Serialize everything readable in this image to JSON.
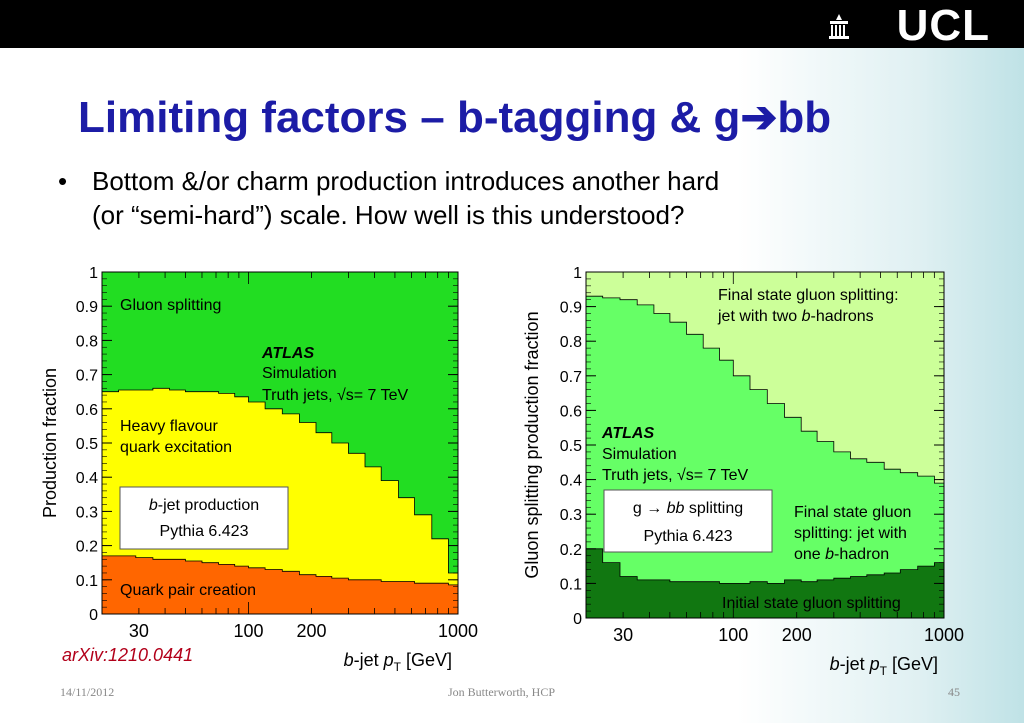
{
  "header": {
    "logo_text": "UCL"
  },
  "slide": {
    "title_prefix": "Limiting factors – b-tagging & g",
    "title_arrow": "➔",
    "title_suffix": "bb",
    "bullet_symbol": "•",
    "bullet_line1": "Bottom &/or charm production introduces another hard",
    "bullet_line2": "(or “semi-hard”) scale. How well is this understood?"
  },
  "reference": "arXiv:1210.0441",
  "footer": {
    "date": "14/11/2012",
    "author": "Jon Butterworth, HCP",
    "page": "45"
  },
  "colors": {
    "green": "#22dd22",
    "yellow": "#ffff00",
    "orange": "#ff6600",
    "light_green": "#ccff99",
    "mid_green": "#66ff66",
    "dark_green": "#117711",
    "title_blue": "#1c1ca6",
    "ref_red": "#b2001a"
  },
  "chart_data": [
    {
      "type": "area",
      "ylabel": "Production fraction",
      "xlabel_parts": [
        "b",
        "-jet ",
        "p",
        "T",
        " [GeV]"
      ],
      "x_log": true,
      "xlim": [
        20,
        1000
      ],
      "ylim": [
        0,
        1
      ],
      "x_ticks": [
        "30",
        "100",
        "200",
        "1000"
      ],
      "x_tick_values": [
        30,
        100,
        200,
        1000
      ],
      "y_ticks": [
        "0",
        "0.1",
        "0.2",
        "0.3",
        "0.4",
        "0.5",
        "0.6",
        "0.7",
        "0.8",
        "0.9",
        "1"
      ],
      "experiment_label": "ATLAS",
      "sim_label": "Simulation",
      "truth_label": "Truth jets, √s= 7 TeV",
      "box_line1_parts": [
        "b",
        "-jet production"
      ],
      "box_line2": "Pythia 6.423",
      "series": [
        {
          "name": "Quark pair creation",
          "color": "#ff6600",
          "x": [
            20,
            24,
            29,
            35,
            42,
            50,
            60,
            72,
            86,
            100,
            120,
            145,
            175,
            210,
            250,
            300,
            360,
            430,
            520,
            620,
            750,
            900,
            1000
          ],
          "top": [
            0.17,
            0.17,
            0.165,
            0.16,
            0.16,
            0.155,
            0.15,
            0.145,
            0.14,
            0.135,
            0.13,
            0.125,
            0.115,
            0.11,
            0.105,
            0.1,
            0.1,
            0.095,
            0.095,
            0.09,
            0.09,
            0.085,
            0.085
          ]
        },
        {
          "name_lines": [
            "Heavy flavour",
            "quark excitation"
          ],
          "color": "#ffff00",
          "x": [
            20,
            24,
            29,
            35,
            42,
            50,
            60,
            72,
            86,
            100,
            120,
            145,
            175,
            210,
            250,
            300,
            360,
            430,
            520,
            620,
            750,
            900,
            1000
          ],
          "top": [
            0.65,
            0.655,
            0.655,
            0.66,
            0.655,
            0.65,
            0.65,
            0.645,
            0.635,
            0.62,
            0.6,
            0.585,
            0.56,
            0.53,
            0.5,
            0.47,
            0.43,
            0.39,
            0.34,
            0.29,
            0.22,
            0.12,
            0.09
          ]
        },
        {
          "name": "Gluon splitting",
          "color": "#22dd22",
          "top_value": 1.0
        }
      ]
    },
    {
      "type": "area",
      "ylabel": "Gluon splitting production fraction",
      "xlabel_parts": [
        "b",
        "-jet ",
        "p",
        "T",
        " [GeV]"
      ],
      "x_log": true,
      "xlim": [
        20,
        1000
      ],
      "ylim": [
        0,
        1
      ],
      "x_ticks": [
        "30",
        "100",
        "200",
        "1000"
      ],
      "x_tick_values": [
        30,
        100,
        200,
        1000
      ],
      "y_ticks": [
        "0",
        "0.1",
        "0.2",
        "0.3",
        "0.4",
        "0.5",
        "0.6",
        "0.7",
        "0.8",
        "0.9",
        "1"
      ],
      "experiment_label": "ATLAS",
      "sim_label": "Simulation",
      "truth_label": "Truth jets, √s= 7 TeV",
      "box_line1_parts": [
        "g → ",
        "bb",
        " splitting"
      ],
      "box_line2": "Pythia 6.423",
      "series": [
        {
          "name": "Initial state gluon splitting",
          "color": "#117711",
          "x": [
            20,
            24,
            29,
            35,
            42,
            50,
            60,
            72,
            86,
            100,
            120,
            145,
            175,
            210,
            250,
            300,
            360,
            430,
            520,
            620,
            750,
            900,
            1000
          ],
          "top": [
            0.2,
            0.16,
            0.12,
            0.11,
            0.11,
            0.105,
            0.105,
            0.105,
            0.1,
            0.1,
            0.105,
            0.1,
            0.11,
            0.105,
            0.11,
            0.115,
            0.12,
            0.125,
            0.13,
            0.14,
            0.15,
            0.16,
            0.17
          ]
        },
        {
          "name_lines": [
            "Final state gluon",
            "splitting: jet with",
            "one b-hadron"
          ],
          "color": "#66ff66",
          "x": [
            20,
            24,
            29,
            35,
            42,
            50,
            60,
            72,
            86,
            100,
            120,
            145,
            175,
            210,
            250,
            300,
            360,
            430,
            520,
            620,
            750,
            900,
            1000
          ],
          "top": [
            0.93,
            0.925,
            0.92,
            0.905,
            0.88,
            0.855,
            0.82,
            0.78,
            0.745,
            0.7,
            0.66,
            0.62,
            0.58,
            0.54,
            0.51,
            0.48,
            0.46,
            0.45,
            0.43,
            0.42,
            0.41,
            0.39,
            0.38
          ]
        },
        {
          "name_lines": [
            "Final state gluon splitting:",
            "jet with two b-hadrons"
          ],
          "color": "#ccff99",
          "top_value": 1.0
        }
      ]
    }
  ]
}
